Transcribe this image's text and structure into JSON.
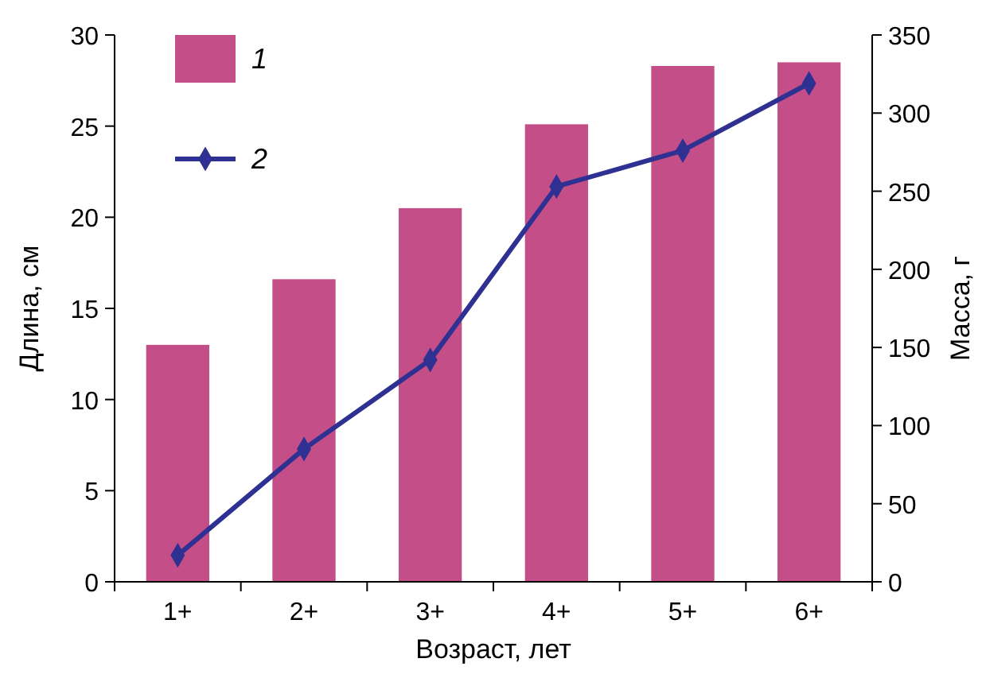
{
  "chart_data": {
    "type": "bar",
    "xlabel": "Возраст, лет",
    "ylabel": "Длина, см",
    "y2label": "Масса, г",
    "categories": [
      "1+",
      "2+",
      "3+",
      "4+",
      "5+",
      "6+"
    ],
    "series": [
      {
        "name": "1",
        "color": "#c44f88",
        "values": [
          13,
          16.6,
          20.5,
          25.1,
          28.3,
          28.5
        ]
      },
      {
        "name": "2",
        "type": "line",
        "axis": "y2",
        "color": "#2e3192",
        "marker": "diamond",
        "values": [
          17,
          85,
          142,
          253,
          276,
          319
        ]
      }
    ],
    "ylim": [
      0,
      30
    ],
    "yticks": [
      0,
      5,
      10,
      15,
      20,
      25,
      30
    ],
    "y2lim": [
      0,
      350
    ],
    "y2ticks": [
      0,
      50,
      100,
      150,
      200,
      250,
      300,
      350
    ],
    "legend": "top left",
    "grid": false
  }
}
